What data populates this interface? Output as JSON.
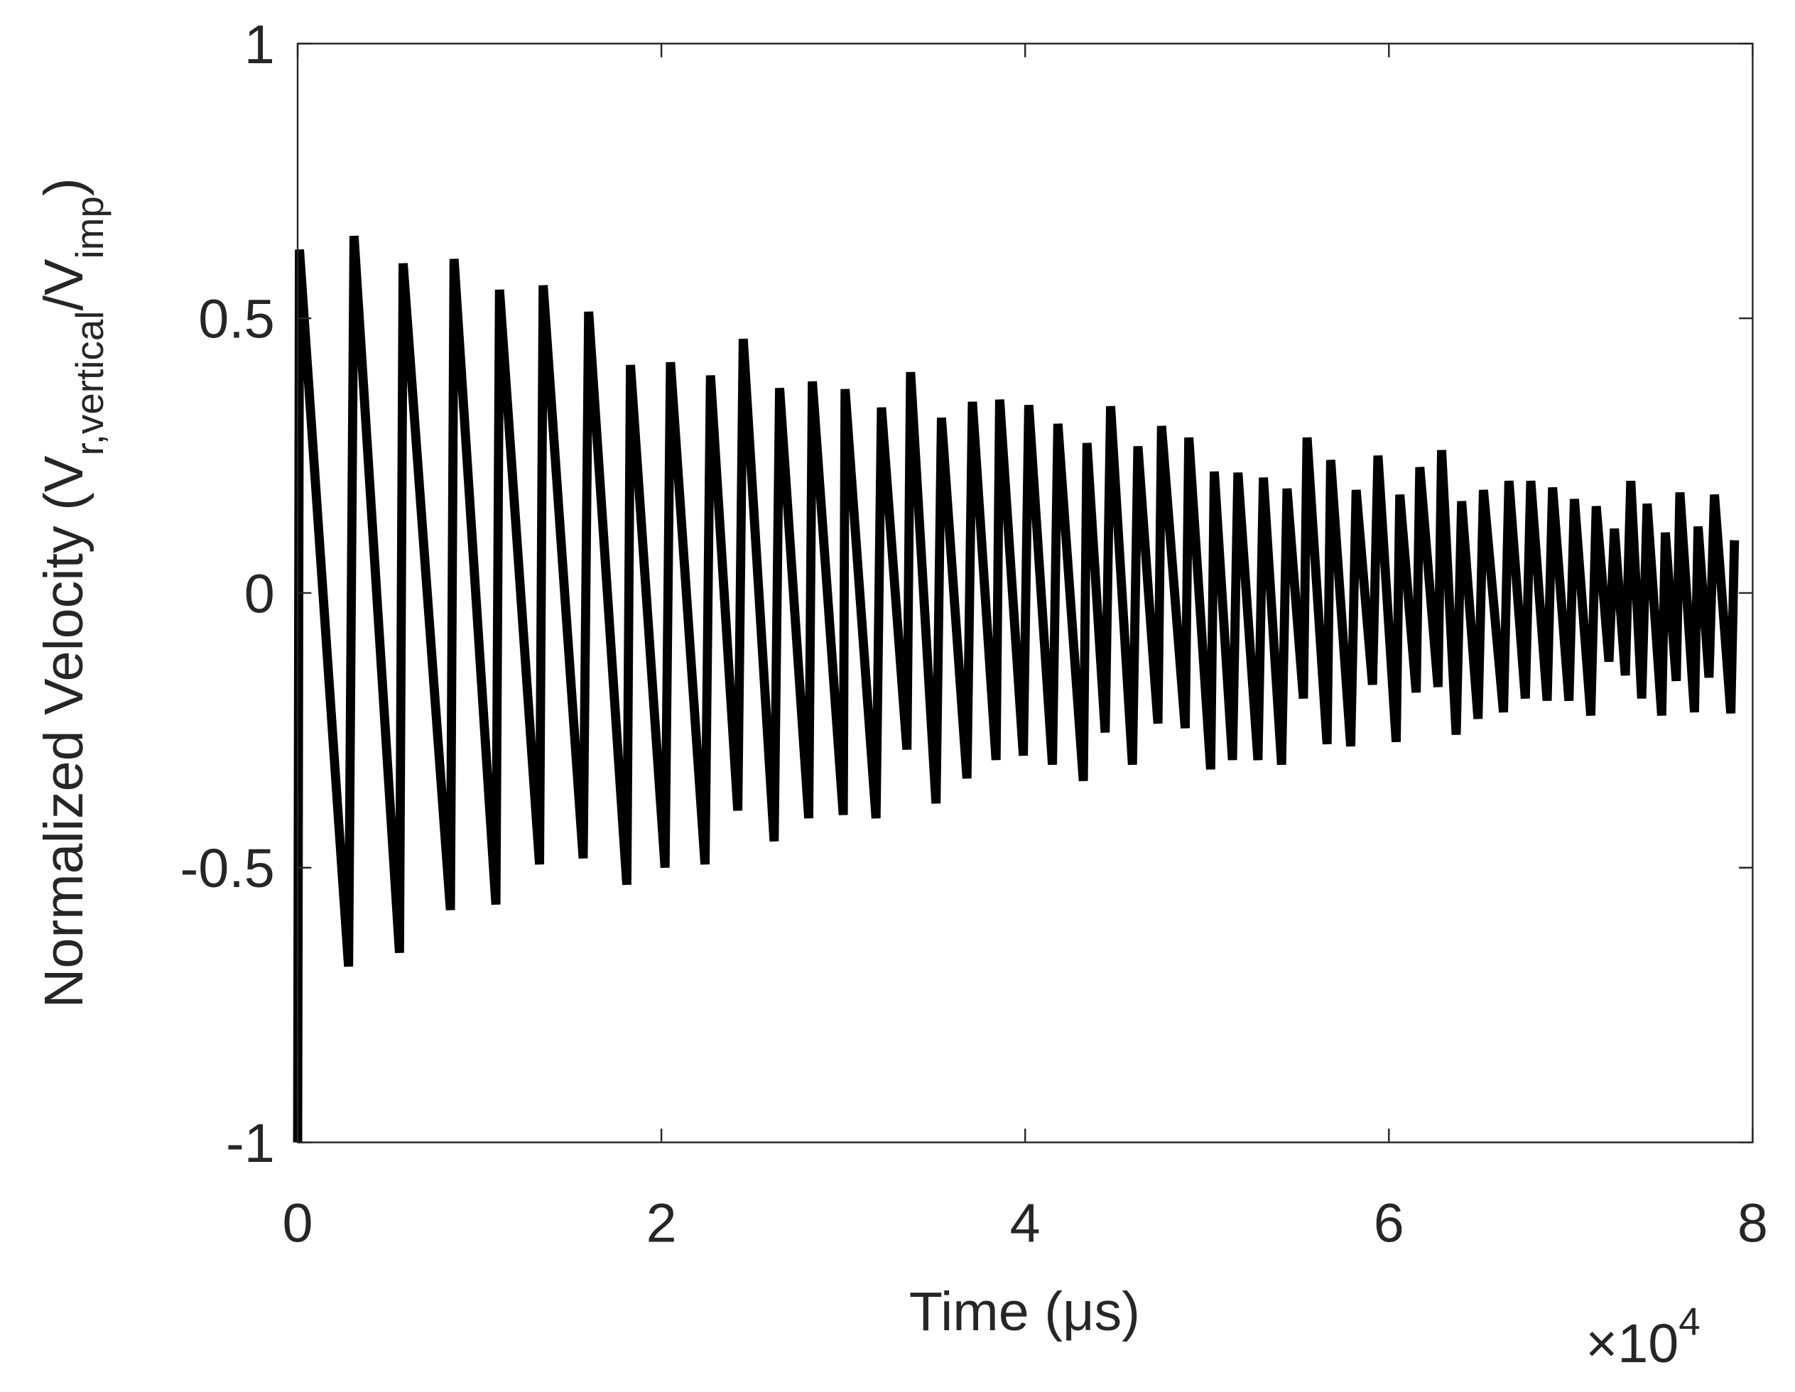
{
  "chart_data": {
    "type": "line",
    "xlabel": "Time (μs)",
    "ylabel_parts": [
      {
        "text": "Normalized Velocity (V"
      },
      {
        "text": "r,vertical",
        "sub": true
      },
      {
        "text": "/V"
      },
      {
        "text": "imp",
        "sub": true
      },
      {
        "text": ")"
      }
    ],
    "x_multiplier": "×10",
    "x_multiplier_exponent": "4",
    "xlim": [
      0,
      8
    ],
    "xticks": [
      0,
      2,
      4,
      6,
      8
    ],
    "ylim": [
      -1,
      1
    ],
    "yticks": [
      -1,
      -0.5,
      0,
      0.5,
      1
    ],
    "grid": false,
    "x": [
      0.0,
      0.01,
      0.28,
      0.31,
      0.56,
      0.58,
      0.84,
      0.86,
      1.09,
      1.11,
      1.33,
      1.35,
      1.57,
      1.6,
      1.81,
      1.83,
      2.02,
      2.05,
      2.24,
      2.27,
      2.42,
      2.45,
      2.62,
      2.65,
      2.81,
      2.83,
      3.0,
      3.01,
      3.18,
      3.21,
      3.35,
      3.37,
      3.51,
      3.54,
      3.68,
      3.71,
      3.84,
      3.86,
      3.99,
      4.02,
      4.15,
      4.18,
      4.32,
      4.34,
      4.44,
      4.47,
      4.59,
      4.62,
      4.73,
      4.75,
      4.88,
      4.9,
      5.02,
      5.04,
      5.14,
      5.17,
      5.28,
      5.31,
      5.41,
      5.44,
      5.53,
      5.55,
      5.66,
      5.68,
      5.79,
      5.82,
      5.91,
      5.94,
      6.04,
      6.06,
      6.15,
      6.17,
      6.27,
      6.29,
      6.37,
      6.4,
      6.49,
      6.52,
      6.63,
      6.66,
      6.75,
      6.78,
      6.87,
      6.9,
      6.99,
      7.02,
      7.11,
      7.14,
      7.21,
      7.24,
      7.3,
      7.33,
      7.39,
      7.42,
      7.5,
      7.52,
      7.58,
      7.6,
      7.68,
      7.7,
      7.76,
      7.79,
      7.88,
      7.9
    ],
    "series": [
      {
        "color": "#000000",
        "values": [
          -1.0,
          0.625,
          -0.68,
          0.65,
          -0.655,
          0.6,
          -0.577,
          0.608,
          -0.567,
          0.552,
          -0.494,
          0.56,
          -0.483,
          0.512,
          -0.531,
          0.415,
          -0.5,
          0.42,
          -0.494,
          0.396,
          -0.396,
          0.4625,
          -0.452,
          0.373,
          -0.41,
          0.385,
          -0.404,
          0.371,
          -0.41,
          0.3375,
          -0.285,
          0.402,
          -0.383,
          0.319,
          -0.3375,
          0.348,
          -0.304,
          0.352,
          -0.296,
          0.342,
          -0.3125,
          0.308,
          -0.342,
          0.273,
          -0.254,
          0.34,
          -0.3125,
          0.267,
          -0.2375,
          0.304,
          -0.246,
          0.283,
          -0.321,
          0.221,
          -0.304,
          0.219,
          -0.304,
          0.21,
          -0.3125,
          0.19,
          -0.192,
          0.283,
          -0.275,
          0.242,
          -0.279,
          0.1875,
          -0.167,
          0.25,
          -0.271,
          0.179,
          -0.181,
          0.229,
          -0.171,
          0.26,
          -0.258,
          0.167,
          -0.229,
          0.1875,
          -0.217,
          0.204,
          -0.192,
          0.204,
          -0.196,
          0.192,
          -0.196,
          0.171,
          -0.223,
          0.158,
          -0.125,
          0.117,
          -0.15,
          0.204,
          -0.192,
          0.1625,
          -0.223,
          0.11,
          -0.16,
          0.183,
          -0.217,
          0.121,
          -0.154,
          0.179,
          -0.219,
          0.096
        ]
      }
    ]
  }
}
